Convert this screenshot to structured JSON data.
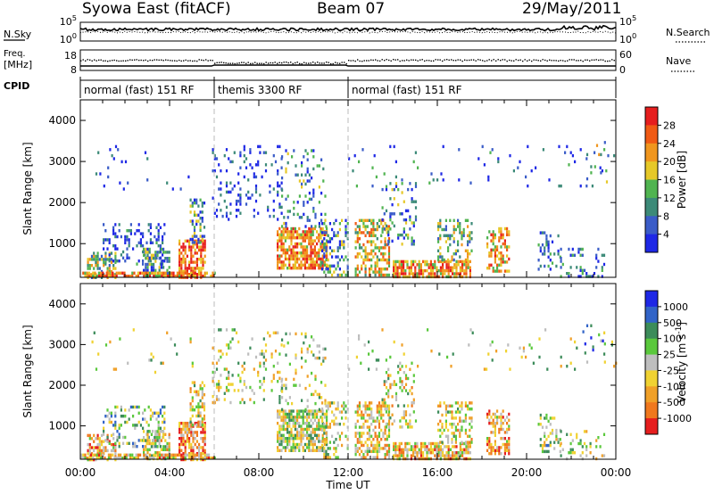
{
  "header": {
    "station": "Syowa East (fitACF)",
    "beam": "Beam 07",
    "date": "29/May/2011"
  },
  "sky_panel": {
    "left_label": "N.Sky",
    "left_ticks": [
      "10^5",
      "10^0"
    ],
    "right_label": "N.Search",
    "right_ticks": [
      "10^5",
      "10^0"
    ],
    "right_legend_line": "dotted"
  },
  "freq_panel": {
    "left_label_line1": "Freq.",
    "left_label_line2": "[MHz]",
    "left_ticks": [
      "18",
      "8"
    ],
    "right_label": "Nave",
    "right_ticks": [
      "60",
      "0"
    ],
    "right_legend_line": "dotted"
  },
  "cpid": {
    "label": "CPID",
    "segments": [
      {
        "start_hour": 0,
        "end_hour": 6,
        "name": "normal (fast) 151 RF"
      },
      {
        "start_hour": 6,
        "end_hour": 12,
        "name": "themis 3300 RF"
      },
      {
        "start_hour": 12,
        "end_hour": 24,
        "name": "normal (fast) 151 RF"
      }
    ]
  },
  "chart_data": [
    {
      "type": "heatmap",
      "ylabel": "Slant Range [km]",
      "xlim_hours": [
        0,
        24
      ],
      "ylim_km": [
        180,
        4500
      ],
      "yticks": [
        "1000",
        "2000",
        "3000",
        "4000"
      ],
      "colorbar": {
        "label": "Power [dB]",
        "ticks": [
          "4",
          "8",
          "12",
          "16",
          "20",
          "24",
          "28"
        ],
        "colors": [
          "#1e28e6",
          "#3a5cc8",
          "#3c8a78",
          "#50b450",
          "#e6c828",
          "#f0961e",
          "#f05a14",
          "#e61e1e"
        ]
      }
    },
    {
      "type": "heatmap",
      "ylabel": "Slant Range [km]",
      "xlim_hours": [
        0,
        24
      ],
      "ylim_km": [
        180,
        4500
      ],
      "yticks": [
        "1000",
        "2000",
        "3000",
        "4000"
      ],
      "xlabel": "Time UT",
      "xticks": [
        "00:00",
        "04:00",
        "08:00",
        "12:00",
        "16:00",
        "20:00",
        "00:00"
      ],
      "colorbar": {
        "label": "Velocity [m s^-1]",
        "ticks": [
          "1000",
          "500",
          "100",
          "25",
          "-25",
          "-100",
          "-500",
          "-1000"
        ],
        "colors": [
          "#1e28e6",
          "#3264c8",
          "#3c8c5a",
          "#5ac83c",
          "#bebebe",
          "#f0d232",
          "#f0a028",
          "#f0781e",
          "#e61e1e"
        ]
      }
    }
  ],
  "echo_regions": [
    {
      "t0": 0.3,
      "t1": 1.6,
      "r0": 200,
      "r1": 800,
      "density": 0.5,
      "pmean": 0.45,
      "vmean": 0.65
    },
    {
      "t0": 1.0,
      "t1": 3.8,
      "r0": 500,
      "r1": 1500,
      "density": 0.28,
      "pmean": 0.12,
      "vmean": 0.4
    },
    {
      "t0": 2.8,
      "t1": 4.0,
      "r0": 200,
      "r1": 900,
      "density": 0.5,
      "pmean": 0.3,
      "vmean": 0.55
    },
    {
      "t0": 4.4,
      "t1": 5.6,
      "r0": 200,
      "r1": 1100,
      "density": 0.65,
      "pmean": 0.8,
      "vmean": 0.75
    },
    {
      "t0": 4.9,
      "t1": 5.6,
      "r0": 1000,
      "r1": 2100,
      "density": 0.4,
      "pmean": 0.35,
      "vmean": 0.55
    },
    {
      "t0": 0.0,
      "t1": 6.0,
      "r0": 200,
      "r1": 320,
      "density": 0.75,
      "pmean": 0.7,
      "vmean": 0.65
    },
    {
      "t0": 0.5,
      "t1": 5.0,
      "r0": 2300,
      "r1": 3400,
      "density": 0.04,
      "pmean": 0.1,
      "vmean": 0.5
    },
    {
      "t0": 5.9,
      "t1": 9.0,
      "r0": 1600,
      "r1": 3400,
      "density": 0.14,
      "pmean": 0.1,
      "vmean": 0.5
    },
    {
      "t0": 8.8,
      "t1": 11.0,
      "r0": 400,
      "r1": 1400,
      "density": 0.7,
      "pmean": 0.72,
      "vmean": 0.5
    },
    {
      "t0": 9.0,
      "t1": 11.0,
      "r0": 1400,
      "r1": 3300,
      "density": 0.15,
      "pmean": 0.3,
      "vmean": 0.5
    },
    {
      "t0": 10.8,
      "t1": 12.0,
      "r0": 200,
      "r1": 1600,
      "density": 0.35,
      "pmean": 0.3,
      "vmean": 0.5
    },
    {
      "t0": 12.3,
      "t1": 13.8,
      "r0": 200,
      "r1": 1600,
      "density": 0.55,
      "pmean": 0.6,
      "vmean": 0.6
    },
    {
      "t0": 13.5,
      "t1": 15.0,
      "r0": 1000,
      "r1": 2500,
      "density": 0.22,
      "pmean": 0.3,
      "vmean": 0.55
    },
    {
      "t0": 14.0,
      "t1": 17.5,
      "r0": 200,
      "r1": 600,
      "density": 0.7,
      "pmean": 0.72,
      "vmean": 0.65
    },
    {
      "t0": 16.0,
      "t1": 17.5,
      "r0": 600,
      "r1": 1600,
      "density": 0.4,
      "pmean": 0.45,
      "vmean": 0.55
    },
    {
      "t0": 18.2,
      "t1": 19.2,
      "r0": 300,
      "r1": 1400,
      "density": 0.5,
      "pmean": 0.65,
      "vmean": 0.7
    },
    {
      "t0": 20.5,
      "t1": 21.5,
      "r0": 400,
      "r1": 1300,
      "density": 0.3,
      "pmean": 0.2,
      "vmean": 0.45
    },
    {
      "t0": 21.5,
      "t1": 23.5,
      "r0": 200,
      "r1": 900,
      "density": 0.18,
      "pmean": 0.2,
      "vmean": 0.5
    },
    {
      "t0": 12.0,
      "t1": 24.0,
      "r0": 2400,
      "r1": 3400,
      "density": 0.035,
      "pmean": 0.15,
      "vmean": 0.5
    },
    {
      "t0": 22.5,
      "t1": 23.6,
      "r0": 2500,
      "r1": 3500,
      "density": 0.08,
      "pmean": 0.4,
      "vmean": 0.3
    }
  ]
}
